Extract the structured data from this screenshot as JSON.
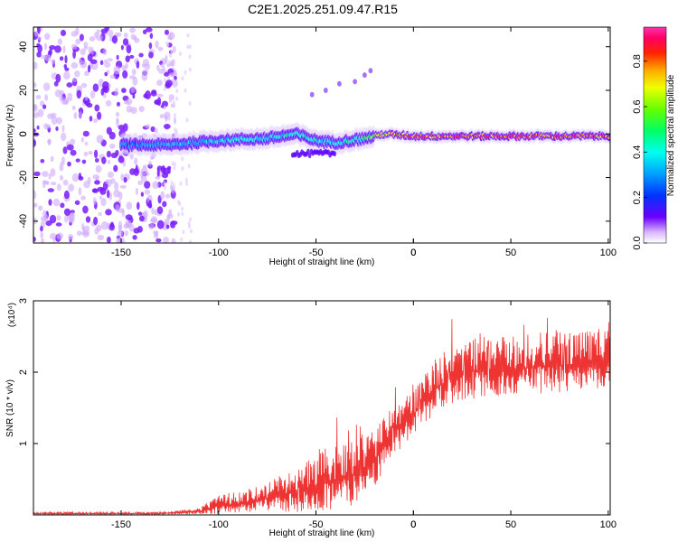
{
  "title": "C2E1.2025.251.09.47.R15",
  "chart_data": [
    {
      "type": "heatmap",
      "name": "spectrogram",
      "xlabel": "Height of straight line (km)",
      "ylabel": "Frequency (Hz)",
      "xlim": [
        -195,
        101
      ],
      "ylim": [
        -50,
        49
      ],
      "x_ticks": [
        -150,
        -100,
        -50,
        0,
        50,
        100
      ],
      "y_ticks": [
        -40,
        -20,
        0,
        20,
        40
      ],
      "colorbar": {
        "label": "Normalized spectral amplitude",
        "range": [
          0,
          0.95
        ],
        "ticks": [
          0.0,
          0.2,
          0.4,
          0.6,
          0.8
        ]
      },
      "noise_region_km": [
        -195,
        -130
      ],
      "carrier_track": [
        {
          "x": -150,
          "f": -5,
          "amp": 0.25
        },
        {
          "x": -125,
          "f": -5,
          "amp": 0.3
        },
        {
          "x": -100,
          "f": -3,
          "amp": 0.35
        },
        {
          "x": -75,
          "f": -2,
          "amp": 0.4
        },
        {
          "x": -60,
          "f": 0,
          "amp": 0.4
        },
        {
          "x": -50,
          "f": -3,
          "amp": 0.4
        },
        {
          "x": -40,
          "f": -4,
          "amp": 0.35
        },
        {
          "x": -25,
          "f": -2,
          "amp": 0.5
        },
        {
          "x": -15,
          "f": 0,
          "amp": 0.75
        },
        {
          "x": 0,
          "f": -1,
          "amp": 0.85
        },
        {
          "x": 25,
          "f": -1,
          "amp": 0.9
        },
        {
          "x": 50,
          "f": -1,
          "amp": 0.9
        },
        {
          "x": 75,
          "f": -1,
          "amp": 0.92
        },
        {
          "x": 100,
          "f": -1,
          "amp": 0.9
        }
      ],
      "side_trace": [
        {
          "x": -52,
          "f": 18
        },
        {
          "x": -45,
          "f": 20
        },
        {
          "x": -38,
          "f": 23
        },
        {
          "x": -30,
          "f": 24
        },
        {
          "x": -25,
          "f": 27
        },
        {
          "x": -22,
          "f": 29
        }
      ]
    },
    {
      "type": "line",
      "name": "snr",
      "xlabel": "Height of straight line (km)",
      "ylabel": "SNR (10 * v/v)",
      "y_multiplier": "(x10⁴)",
      "xlim": [
        -195,
        101
      ],
      "ylim": [
        0,
        3
      ],
      "x_ticks": [
        -150,
        -100,
        -50,
        0,
        50,
        100
      ],
      "y_ticks": [
        1,
        2,
        3
      ],
      "color": "#ee3333",
      "envelope": [
        {
          "x": -195,
          "mean": 0.02,
          "spread": 0.02
        },
        {
          "x": -130,
          "mean": 0.02,
          "spread": 0.02
        },
        {
          "x": -110,
          "mean": 0.05,
          "spread": 0.05
        },
        {
          "x": -100,
          "mean": 0.12,
          "spread": 0.15
        },
        {
          "x": -80,
          "mean": 0.2,
          "spread": 0.2
        },
        {
          "x": -60,
          "mean": 0.32,
          "spread": 0.35
        },
        {
          "x": -45,
          "mean": 0.45,
          "spread": 0.5
        },
        {
          "x": -35,
          "mean": 0.5,
          "spread": 0.55
        },
        {
          "x": -20,
          "mean": 0.75,
          "spread": 0.45
        },
        {
          "x": -10,
          "mean": 1.15,
          "spread": 0.4
        },
        {
          "x": 0,
          "mean": 1.4,
          "spread": 0.35
        },
        {
          "x": 10,
          "mean": 1.75,
          "spread": 0.45
        },
        {
          "x": 25,
          "mean": 2.0,
          "spread": 0.5
        },
        {
          "x": 50,
          "mean": 2.05,
          "spread": 0.45
        },
        {
          "x": 75,
          "mean": 2.1,
          "spread": 0.5
        },
        {
          "x": 101,
          "mean": 2.15,
          "spread": 0.45
        }
      ]
    }
  ]
}
